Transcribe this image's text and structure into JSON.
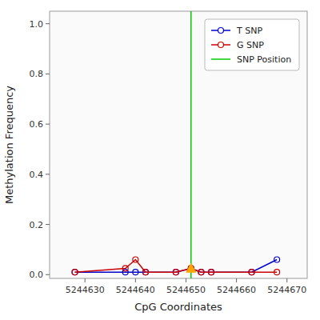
{
  "chart_data": {
    "type": "line",
    "xlabel": "CpG Coordinates",
    "ylabel": "Methylation Frequency",
    "x": [
      5244628,
      5244638,
      5244640,
      5244642,
      5244648,
      5244651,
      5244653,
      5244655,
      5244663,
      5244668
    ],
    "series": [
      {
        "name": "T SNP",
        "color": "#0000cc",
        "marker": "circle",
        "line_style": "solid",
        "values": [
          0.01,
          0.01,
          0.01,
          0.01,
          0.01,
          0.025,
          0.01,
          0.01,
          0.01,
          0.06
        ]
      },
      {
        "name": "G SNP",
        "color": "#cc0000",
        "marker": "circle",
        "line_style": "solid",
        "values": [
          0.01,
          0.025,
          0.06,
          0.01,
          0.01,
          0.025,
          0.01,
          0.01,
          0.01,
          0.01
        ]
      },
      {
        "name": "SNP Position",
        "type": "vline",
        "color": "#00cc00",
        "x": 5244651
      }
    ],
    "snp_marker": {
      "x": 5244651,
      "y": 0.025,
      "color": "#FFA500",
      "marker": "triangle"
    },
    "xlim": [
      5244623,
      5244674
    ],
    "ylim": [
      -0.015,
      1.05
    ],
    "xticks": [
      5244630,
      5244640,
      5244650,
      5244660,
      5244670
    ],
    "yticks": [
      {
        "value": 0.0,
        "label": "0.0"
      },
      {
        "value": 0.2,
        "label": "0.2"
      },
      {
        "value": 0.4,
        "label": "0.4"
      },
      {
        "value": 0.6,
        "label": "0.6"
      },
      {
        "value": 0.8,
        "label": "0.8"
      },
      {
        "value": 1.0,
        "label": "1.0"
      }
    ],
    "legend": "upper right",
    "grid": false
  }
}
